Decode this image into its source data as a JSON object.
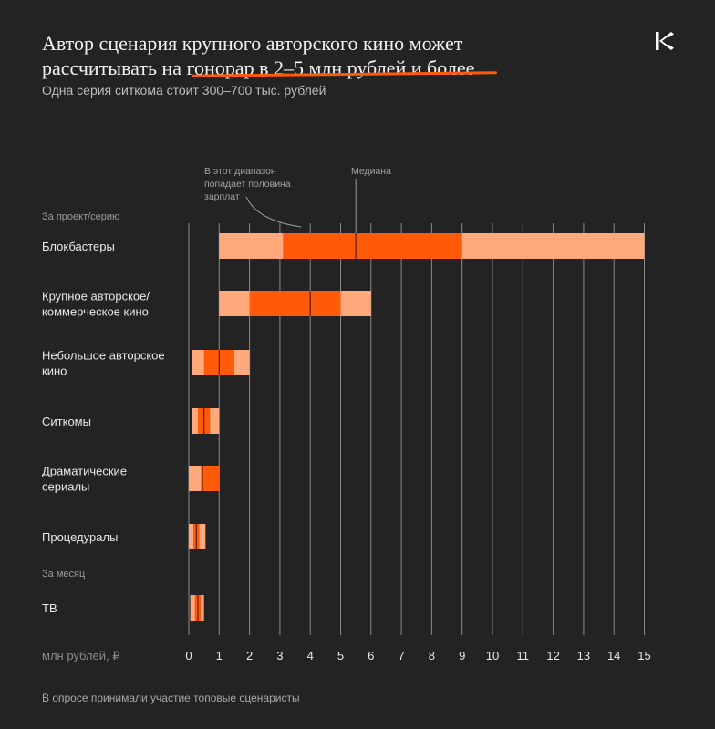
{
  "header": {
    "title_line1": "Автор сценария крупного авторского кино может",
    "title_line2": "рассчитывать на гонорар в 2–5 млн рублей и более",
    "subtitle": "Одна серия ситкома стоит 300–700 тыс. рублей",
    "logo_icon": "brand-logo-icon"
  },
  "footnote": "В опросе принимали участие топовые сценаристы",
  "colors": {
    "background": "#232323",
    "range": "#ffa97d",
    "iqr": "#ff5a0a",
    "median": "#5a1e05",
    "grid": "#8a8a8a"
  },
  "chart_data": {
    "type": "range-bar",
    "title": "Автор сценария крупного авторского кино может рассчитывать на гонорар в 2–5 млн рублей и более",
    "subtitle": "Одна серия ситкома стоит 300–700 тыс. рублей",
    "xlabel": "млн рублей, ₽",
    "xlim": [
      0,
      15
    ],
    "x_ticks": [
      "0",
      "1",
      "2",
      "3",
      "4",
      "5",
      "6",
      "7",
      "8",
      "9",
      "10",
      "11",
      "12",
      "13",
      "14",
      "15"
    ],
    "grid": true,
    "section_labels": [
      "За проект/серию",
      "За месяц"
    ],
    "annotations": {
      "iqr": "В этот диапазон попадает половина зарплат",
      "median": "Медиана"
    },
    "series": [
      {
        "category": "Блокбастеры",
        "lines": [
          "Блокбастеры"
        ],
        "min": 1,
        "q1": 3.1,
        "median": 5.5,
        "q3": 9,
        "max": 15
      },
      {
        "category": "Крупное авторское/коммерческое кино",
        "lines": [
          "Крупное авторское/",
          "коммерческое кино"
        ],
        "min": 1,
        "q1": 2,
        "median": 4,
        "q3": 5,
        "max": 6
      },
      {
        "category": "Небольшое авторское кино",
        "lines": [
          "Небольшое авторское",
          "кино"
        ],
        "min": 0.1,
        "q1": 0.5,
        "median": 1,
        "q3": 1.5,
        "max": 2
      },
      {
        "category": "Ситкомы",
        "lines": [
          "Ситкомы"
        ],
        "min": 0.1,
        "q1": 0.3,
        "median": 0.5,
        "q3": 0.7,
        "max": 1
      },
      {
        "category": "Драматические сериалы",
        "lines": [
          "Драматические",
          "сериалы"
        ],
        "min": 0,
        "q1": 0.4,
        "median": 0.45,
        "q3": 1,
        "max": 1
      },
      {
        "category": "Процедуралы",
        "lines": [
          "Процедуралы"
        ],
        "min": 0,
        "q1": 0.15,
        "median": 0.25,
        "q3": 0.35,
        "max": 0.55
      },
      {
        "category": "ТВ",
        "lines": [
          "ТВ"
        ],
        "min": 0.05,
        "q1": 0.2,
        "median": 0.3,
        "q3": 0.4,
        "max": 0.5
      }
    ]
  }
}
